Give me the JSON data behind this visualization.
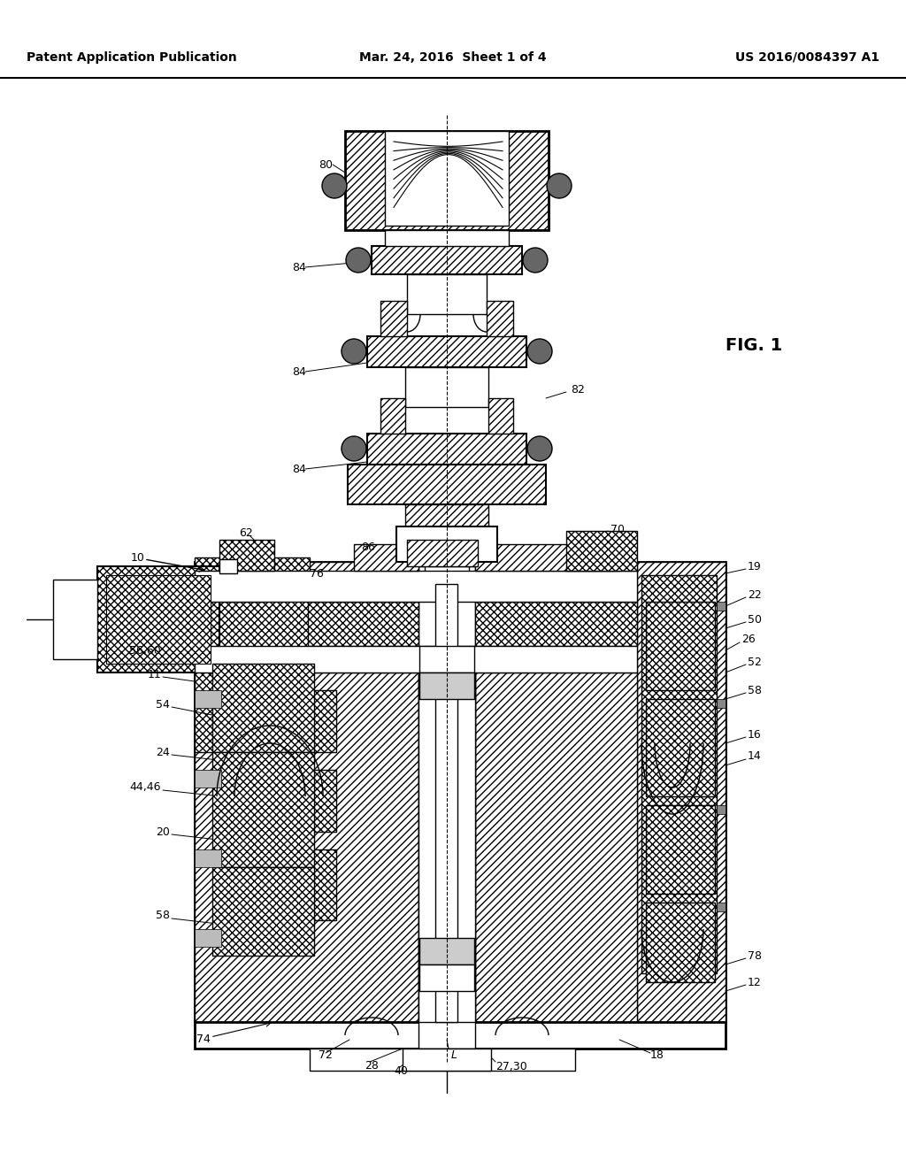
{
  "title_left": "Patent Application Publication",
  "title_mid": "Mar. 24, 2016  Sheet 1 of 4",
  "title_right": "US 2016/0084397 A1",
  "fig_label": "FIG. 1",
  "background": "#ffffff"
}
